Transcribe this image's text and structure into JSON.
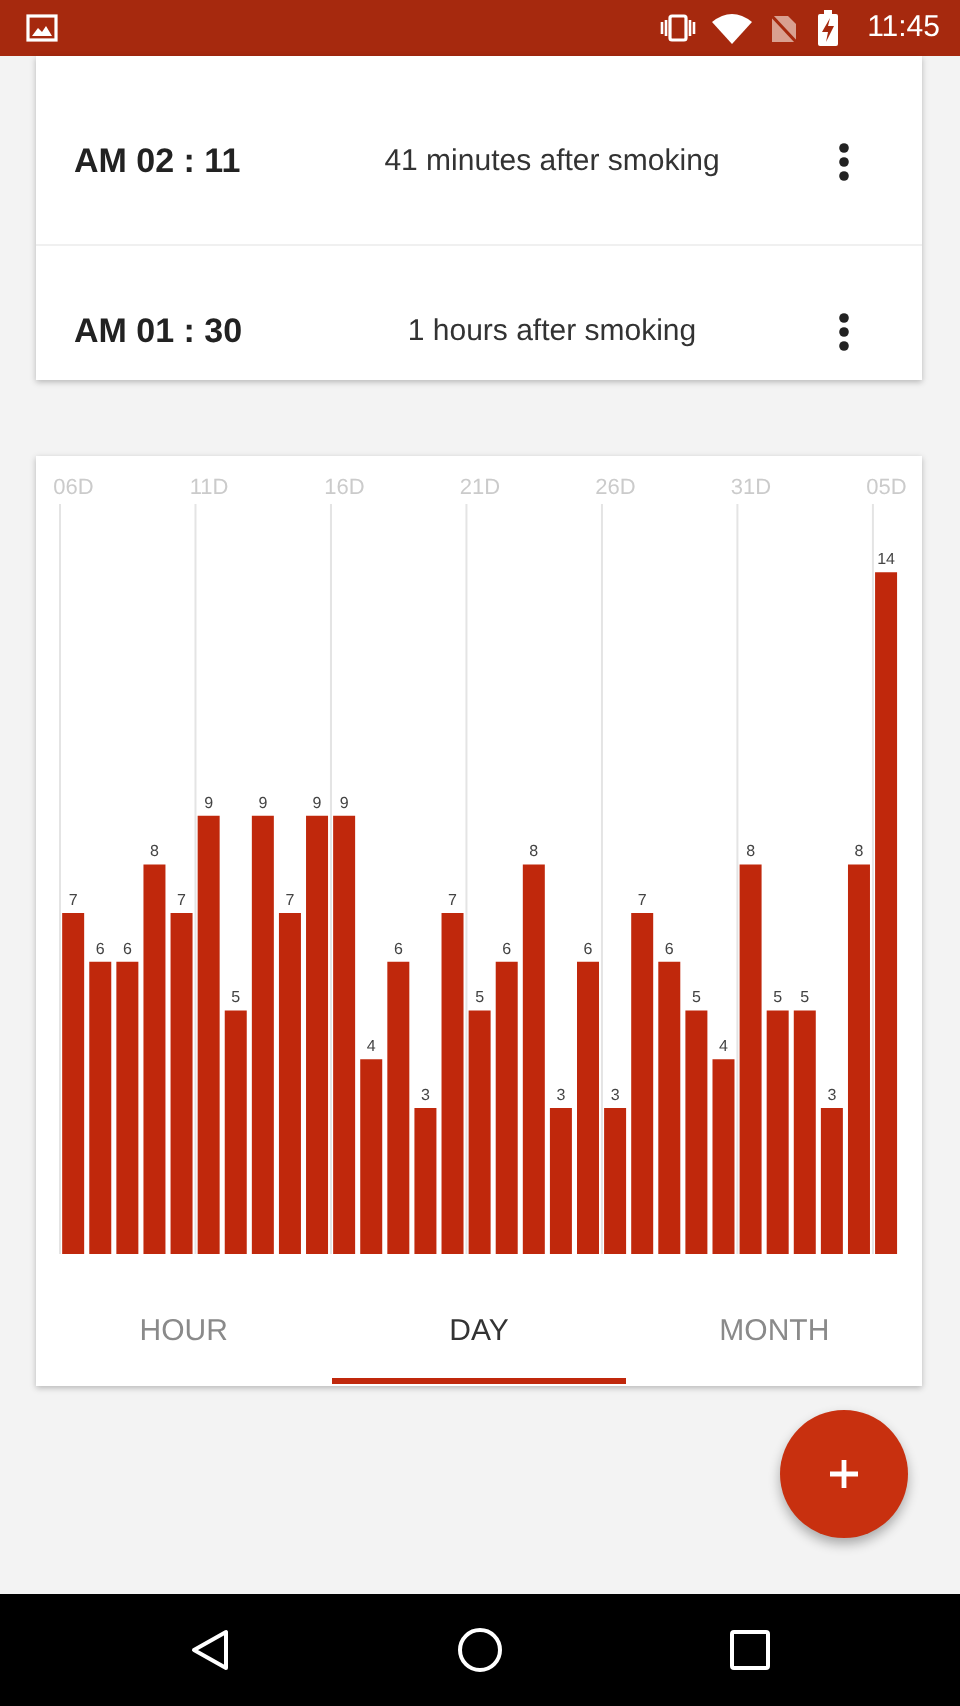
{
  "chart_data": [
    {
      "type": "other",
      "annotations": [
        "11:45"
      ]
    },
    {
      "type": "other",
      "annotations": [
        "AM 02 : 11",
        "41 minutes after smoking",
        "AM 01 : 30",
        "1 hours after smoking"
      ]
    },
    {
      "type": "bar",
      "categories": [
        "06D",
        null,
        null,
        null,
        null,
        "11D",
        null,
        null,
        null,
        null,
        "16D",
        null,
        null,
        null,
        null,
        "21D",
        null,
        null,
        null,
        null,
        "26D",
        null,
        null,
        null,
        null,
        "31D",
        null,
        null,
        null,
        null,
        "05D"
      ],
      "values": [
        7,
        6,
        6,
        8,
        7,
        9,
        5,
        9,
        7,
        9,
        9,
        4,
        6,
        3,
        7,
        5,
        6,
        8,
        3,
        6,
        3,
        7,
        6,
        5,
        4,
        8,
        5,
        5,
        3,
        8,
        14
      ],
      "color": "#c0280c",
      "ylim": [
        0,
        15.4
      ],
      "grid": "x",
      "data_labels": true,
      "tick_labels": "x",
      "annotations": [
        "HOUR",
        "DAY",
        "MONTH"
      ]
    }
  ]
}
